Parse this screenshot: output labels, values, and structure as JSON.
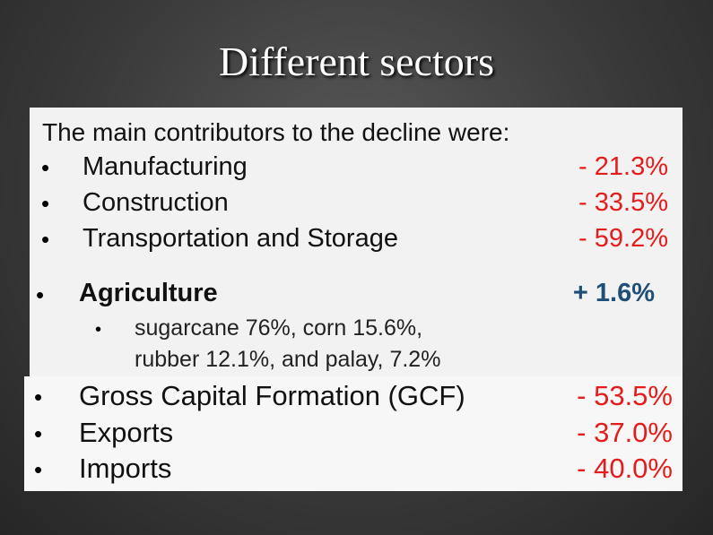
{
  "title": "Different sectors",
  "intro": "The main contributors to the decline were:",
  "sectors": [
    {
      "label": "Manufacturing",
      "value": "- 21.3%"
    },
    {
      "label": "Construction",
      "value": "- 33.5%"
    },
    {
      "label": "Transportation and Storage",
      "value": "- 59.2%"
    }
  ],
  "agriculture": {
    "label": "Agriculture",
    "value": "+ 1.6%",
    "detail": [
      "sugarcane 76%, corn 15.6%,",
      "rubber 12.1%, and palay, 7.2%"
    ]
  },
  "other": [
    {
      "label": "Gross Capital Formation (GCF)",
      "value": "- 53.5%"
    },
    {
      "label": "Exports",
      "value": "- 37.0%"
    },
    {
      "label": "Imports",
      "value": "- 40.0%"
    }
  ]
}
